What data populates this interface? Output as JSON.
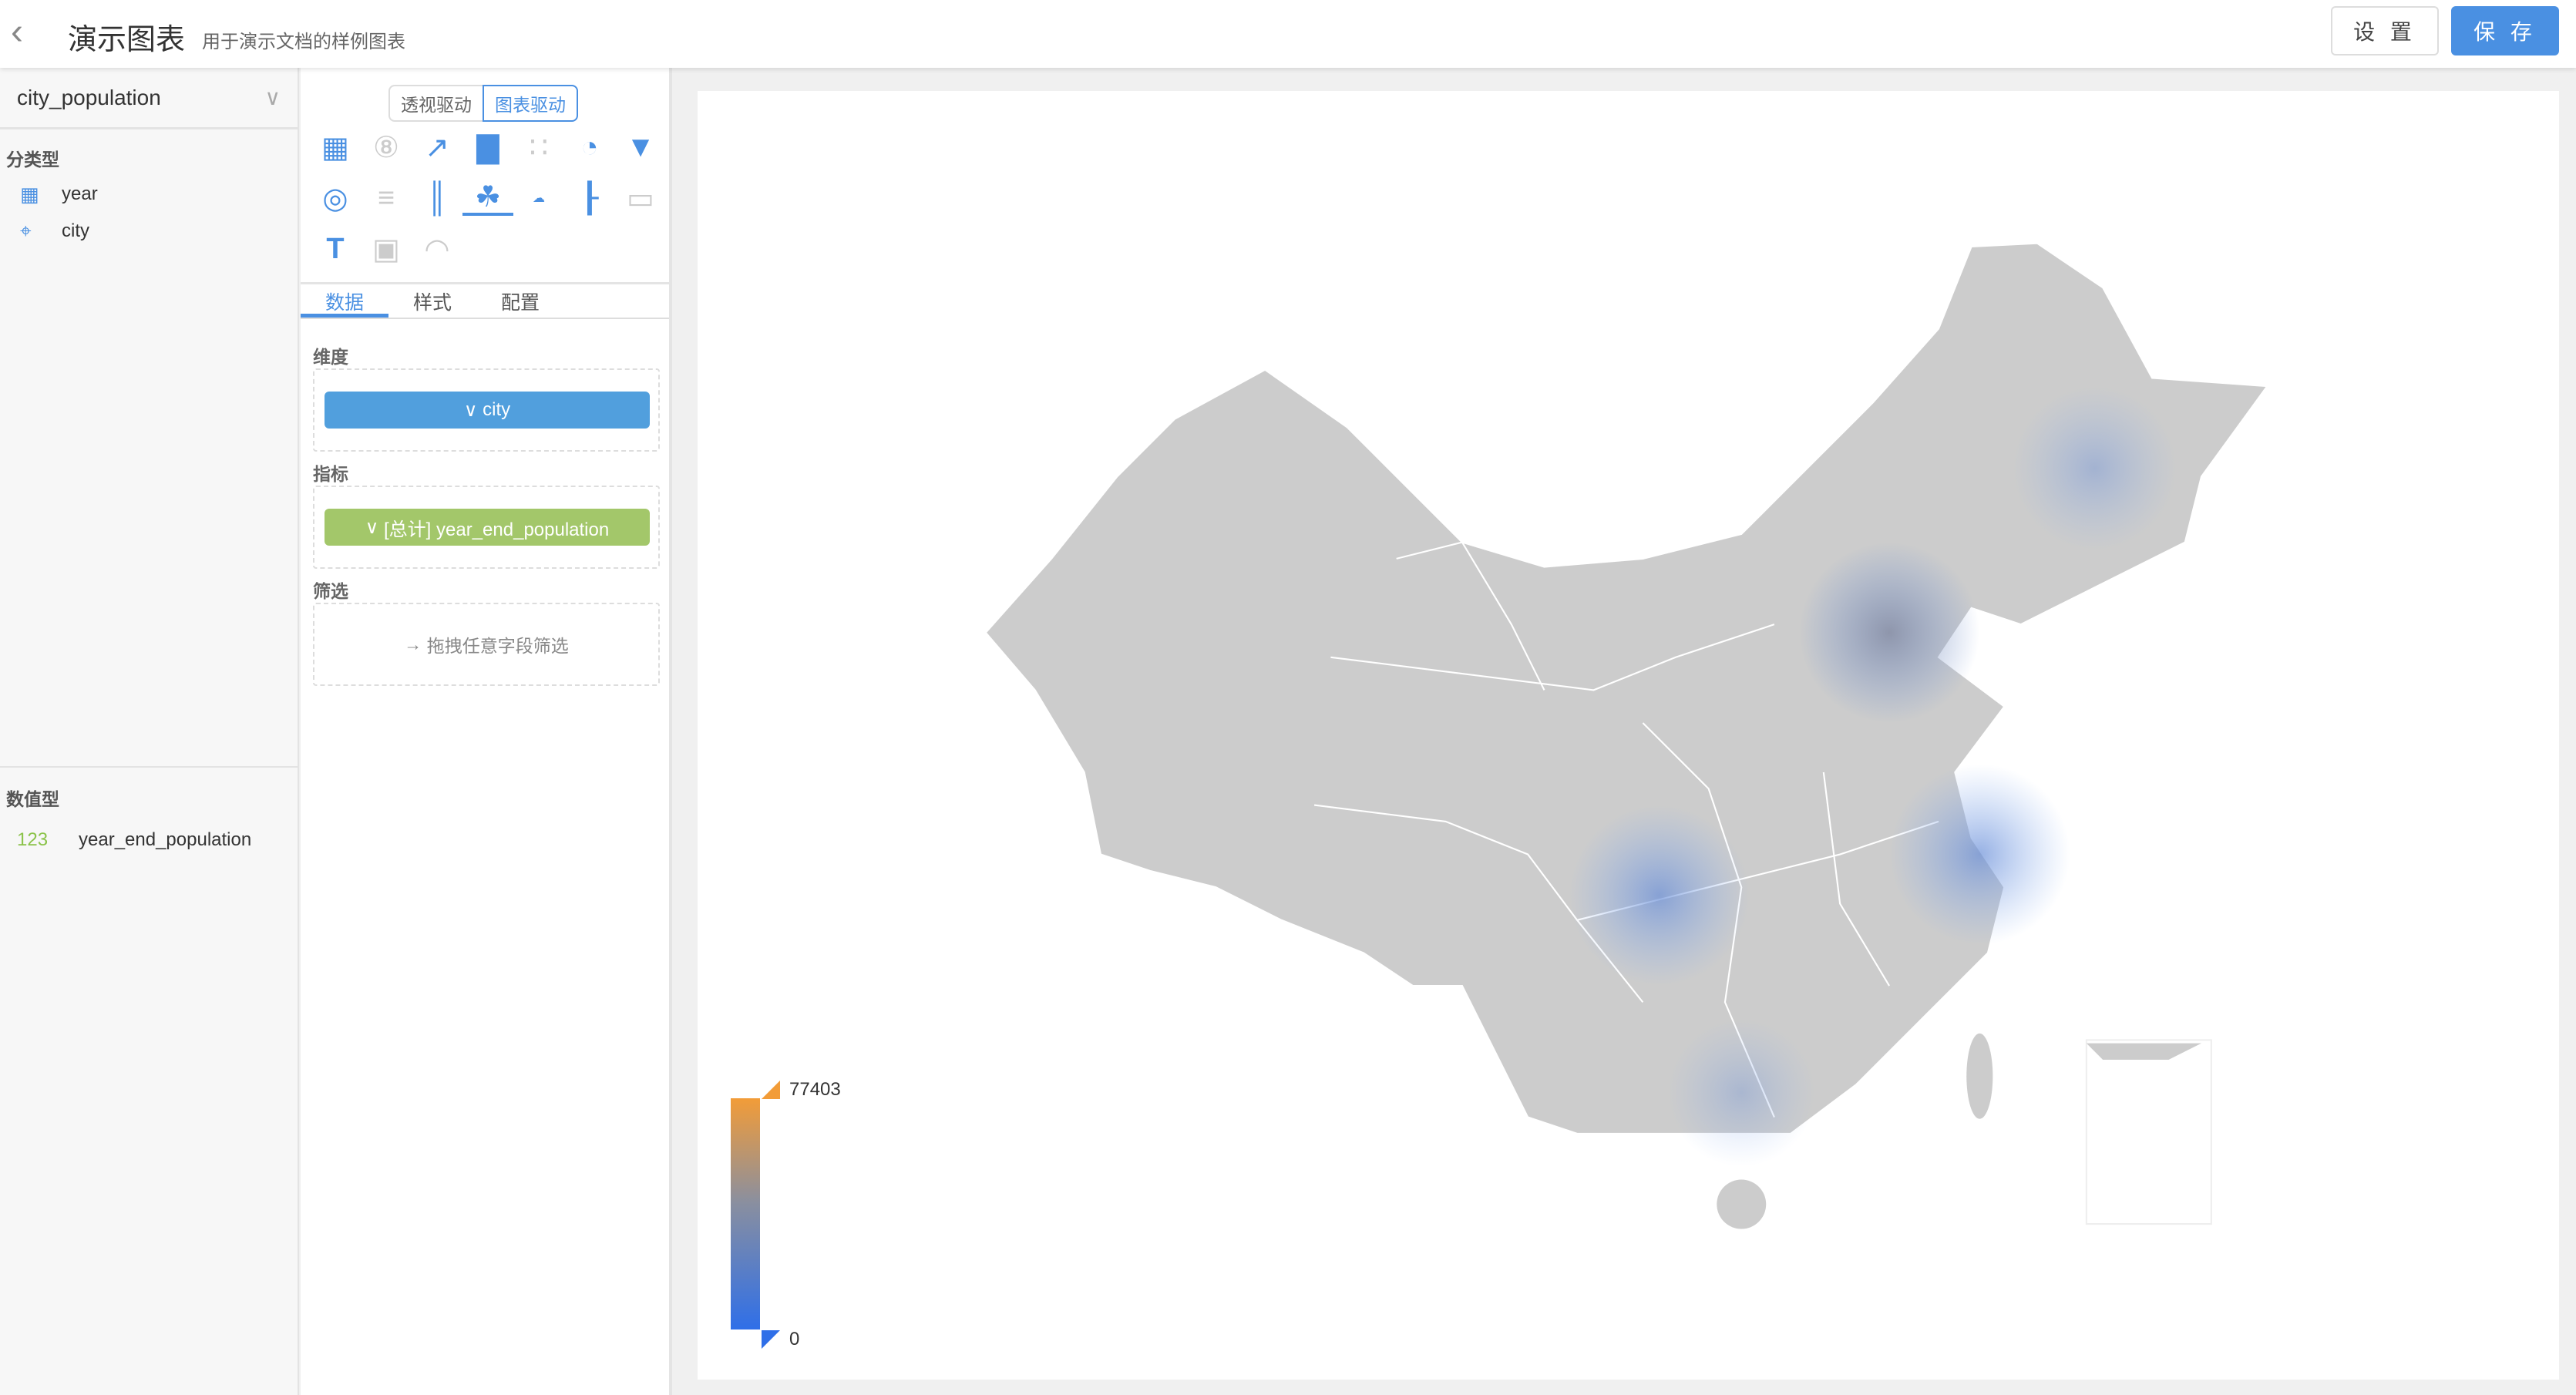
{
  "header": {
    "title": "演示图表",
    "subtitle": "用于演示文档的样例图表",
    "settings_label": "设 置",
    "save_label": "保 存"
  },
  "sidebar": {
    "dataset": "city_population",
    "categorical_label": "分类型",
    "categorical_fields": [
      {
        "name": "year",
        "icon": "calendar-icon"
      },
      {
        "name": "city",
        "icon": "map-pin-icon"
      }
    ],
    "numeric_label": "数值型",
    "numeric_fields": [
      {
        "name": "year_end_population",
        "icon_text": "123"
      }
    ]
  },
  "panel": {
    "mode_pivot": "透视驱动",
    "mode_chart": "图表驱动",
    "chart_types": [
      "table",
      "kpi",
      "line",
      "bar",
      "scatter",
      "pie",
      "funnel",
      "radar",
      "parallel",
      "sankey",
      "china-map",
      "word-cloud",
      "waterfall",
      "iframe",
      "text",
      "dual-axis",
      "gauge"
    ],
    "selected_chart": "china-map",
    "tabs": [
      "数据",
      "样式",
      "配置"
    ],
    "active_tab": "数据",
    "dimension_label": "维度",
    "dimension_value": "city",
    "metric_label": "指标",
    "metric_value": "[总计] year_end_population",
    "filter_label": "筛选",
    "filter_placeholder": "拖拽任意字段筛选"
  },
  "chart": {
    "type": "heatmap-map",
    "legend_max": "77403",
    "legend_min": "0",
    "colors": {
      "high": "#f29c38",
      "low": "#2f6fe8",
      "base": "#cccccc"
    }
  }
}
